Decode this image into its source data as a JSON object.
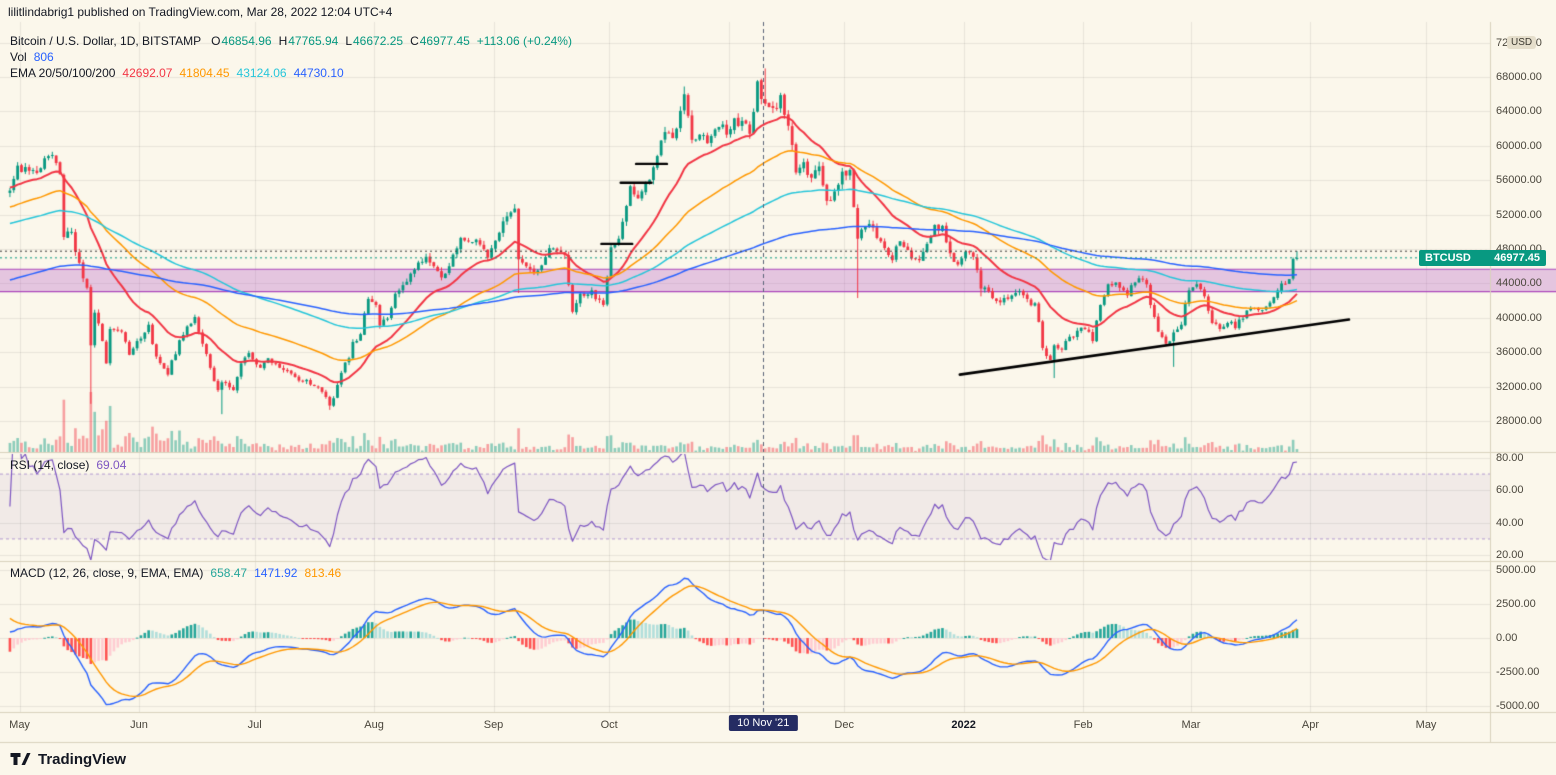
{
  "attribution": "lilitlindabrig1 published on TradingView.com, Mar 28, 2022 12:04 UTC+4",
  "header": {
    "title": "Bitcoin / U.S. Dollar, 1D, BITSTAMP",
    "ohlc": {
      "o_label": "O",
      "o": "46854.96",
      "h_label": "H",
      "h": "47765.94",
      "l_label": "L",
      "l": "46672.25",
      "c_label": "C",
      "c": "46977.45",
      "change": "+113.06 (+0.24%)"
    },
    "volume_label": "Vol",
    "volume_value": "806",
    "ema_label": "EMA 20/50/100/200"
  },
  "price_axis": {
    "unit": "USD",
    "ylim": [
      24400,
      74400
    ],
    "ticks": [
      72000,
      68000,
      64000,
      60000,
      56000,
      52000,
      48000,
      44000,
      40000,
      36000,
      32000,
      28000
    ]
  },
  "price_label_badge": {
    "symbol": "BTCUSD",
    "price": "46977.45"
  },
  "rsi": {
    "legend": "RSI (14, close)",
    "value": "69.04",
    "ticks": [
      80,
      60,
      40,
      20
    ],
    "upper_band": 70,
    "lower_band": 30,
    "ylim": [
      17,
      83
    ]
  },
  "macd": {
    "legend": "MACD (12, 26, close, 9, EMA, EMA)",
    "values": [
      {
        "v": "658.47",
        "color_key": "hist_up"
      },
      {
        "v": "1471.92",
        "color_key": "macd_line"
      },
      {
        "v": "813.46",
        "color_key": "signal_line"
      }
    ],
    "ticks": [
      5000,
      2500,
      0,
      -2500,
      -5000
    ],
    "ylim": [
      -5450,
      5600
    ]
  },
  "time_axis": {
    "months": [
      {
        "label": "May",
        "day": 3
      },
      {
        "label": "Jun",
        "day": 34
      },
      {
        "label": "Jul",
        "day": 64
      },
      {
        "label": "Aug",
        "day": 95
      },
      {
        "label": "Sep",
        "day": 126
      },
      {
        "label": "Oct",
        "day": 156
      },
      {
        "label": "Dec",
        "day": 217
      },
      {
        "label": "2022",
        "day": 248,
        "bold": true
      },
      {
        "label": "Feb",
        "day": 279
      },
      {
        "label": "Mar",
        "day": 307
      },
      {
        "label": "Apr",
        "day": 338
      },
      {
        "label": "May",
        "day": 368
      }
    ],
    "grid_days": [
      3,
      34,
      64,
      95,
      126,
      156,
      187,
      217,
      248,
      279,
      307,
      338,
      368
    ],
    "highlight": {
      "label": "10 Nov '21",
      "day": 196
    }
  },
  "footer": {
    "brand": "TradingView"
  },
  "colors": {
    "background": "#FBF7EB",
    "up": "#089981",
    "down": "#F23645",
    "vol_up": "rgba(8,153,129,0.45)",
    "vol_down": "rgba(242,54,69,0.45)",
    "vol_value": "#2962FF",
    "grid": "rgba(0,0,0,0.07)",
    "divider": "#D9D2BD",
    "axis_text": "#4A463C",
    "text": "#131722",
    "ema20": "#F23645",
    "ema50": "#FF9800",
    "ema100": "#26C6DA",
    "ema200": "#2962FF",
    "rsi": "#7E57C2",
    "rsi_band_fill": "rgba(126,87,194,0.08)",
    "rsi_band_line": "rgba(126,87,194,0.55)",
    "macd_line": "#2962FF",
    "signal_line": "#FF9800",
    "hist_up": "#26A69A",
    "hist_up_weak": "#B2DFDB",
    "hist_down": "#FF5252",
    "hist_down_weak": "#FFCDD2",
    "band_fill": "rgba(186,104,200,0.35)",
    "band_line": "#AB47BC",
    "price_line": "#089981",
    "drawing": "#000000",
    "vline": "#5A6478",
    "badge_bg": "#089981",
    "date_badge_bg": "#252C63"
  },
  "chart_data": {
    "type": "candlestick+indicators",
    "symbol": "BTCUSD",
    "exchange": "BITSTAMP",
    "interval": "1D",
    "days_total": 382,
    "candle_days": 335,
    "price_anchors": [
      [
        0,
        54800
      ],
      [
        2,
        57700
      ],
      [
        5,
        57100
      ],
      [
        8,
        57400
      ],
      [
        10,
        58800
      ],
      [
        12,
        58000
      ],
      [
        13,
        56700
      ],
      [
        14,
        49400
      ],
      [
        16,
        50000
      ],
      [
        18,
        46400
      ],
      [
        20,
        43500
      ],
      [
        21,
        36800
      ],
      [
        22,
        40600
      ],
      [
        24,
        37300
      ],
      [
        25,
        34700
      ],
      [
        26,
        38700
      ],
      [
        29,
        38400
      ],
      [
        31,
        35700
      ],
      [
        33,
        37300
      ],
      [
        36,
        39200
      ],
      [
        38,
        35500
      ],
      [
        41,
        33400
      ],
      [
        44,
        37400
      ],
      [
        46,
        39000
      ],
      [
        48,
        40100
      ],
      [
        51,
        35800
      ],
      [
        54,
        31600
      ],
      [
        55,
        32500
      ],
      [
        58,
        31600
      ],
      [
        60,
        34700
      ],
      [
        62,
        35900
      ],
      [
        65,
        34200
      ],
      [
        67,
        35300
      ],
      [
        70,
        34200
      ],
      [
        72,
        33800
      ],
      [
        75,
        32700
      ],
      [
        77,
        32800
      ],
      [
        80,
        31900
      ],
      [
        82,
        30800
      ],
      [
        83,
        29800
      ],
      [
        85,
        32200
      ],
      [
        86,
        33600
      ],
      [
        88,
        35300
      ],
      [
        89,
        37200
      ],
      [
        91,
        38100
      ],
      [
        93,
        42200
      ],
      [
        95,
        41500
      ],
      [
        96,
        39100
      ],
      [
        98,
        39900
      ],
      [
        100,
        42800
      ],
      [
        102,
        43800
      ],
      [
        105,
        45600
      ],
      [
        108,
        47100
      ],
      [
        110,
        46000
      ],
      [
        112,
        44700
      ],
      [
        114,
        46000
      ],
      [
        117,
        49300
      ],
      [
        119,
        48900
      ],
      [
        121,
        49100
      ],
      [
        123,
        48000
      ],
      [
        124,
        47000
      ],
      [
        127,
        49900
      ],
      [
        129,
        51800
      ],
      [
        131,
        52700
      ],
      [
        132,
        46800
      ],
      [
        134,
        46000
      ],
      [
        136,
        45200
      ],
      [
        138,
        46100
      ],
      [
        140,
        48100
      ],
      [
        142,
        47800
      ],
      [
        144,
        47300
      ],
      [
        146,
        40700
      ],
      [
        148,
        42800
      ],
      [
        151,
        43200
      ],
      [
        153,
        42100
      ],
      [
        154,
        41500
      ],
      [
        156,
        48200
      ],
      [
        158,
        49200
      ],
      [
        161,
        55300
      ],
      [
        163,
        53900
      ],
      [
        164,
        54700
      ],
      [
        167,
        57500
      ],
      [
        170,
        61600
      ],
      [
        172,
        60900
      ],
      [
        173,
        62000
      ],
      [
        175,
        66000
      ],
      [
        177,
        60700
      ],
      [
        179,
        61300
      ],
      [
        181,
        60300
      ],
      [
        183,
        61900
      ],
      [
        184,
        62200
      ],
      [
        186,
        61300
      ],
      [
        188,
        63200
      ],
      [
        190,
        62900
      ],
      [
        192,
        61400
      ],
      [
        194,
        67500
      ],
      [
        196,
        64900
      ],
      [
        198,
        64400
      ],
      [
        200,
        65900
      ],
      [
        201,
        63600
      ],
      [
        203,
        60100
      ],
      [
        204,
        56900
      ],
      [
        206,
        58100
      ],
      [
        208,
        56300
      ],
      [
        210,
        57600
      ],
      [
        212,
        53600
      ],
      [
        214,
        54700
      ],
      [
        216,
        57000
      ],
      [
        218,
        57200
      ],
      [
        220,
        49200
      ],
      [
        222,
        50600
      ],
      [
        224,
        50500
      ],
      [
        226,
        48900
      ],
      [
        228,
        47300
      ],
      [
        229,
        46700
      ],
      [
        231,
        48900
      ],
      [
        234,
        46900
      ],
      [
        236,
        46700
      ],
      [
        238,
        48600
      ],
      [
        240,
        50800
      ],
      [
        242,
        50700
      ],
      [
        244,
        47500
      ],
      [
        246,
        46200
      ],
      [
        248,
        47700
      ],
      [
        250,
        47100
      ],
      [
        252,
        43400
      ],
      [
        254,
        43100
      ],
      [
        257,
        41800
      ],
      [
        260,
        42600
      ],
      [
        262,
        43100
      ],
      [
        264,
        42200
      ],
      [
        266,
        41700
      ],
      [
        268,
        36500
      ],
      [
        270,
        35100
      ],
      [
        271,
        36800
      ],
      [
        273,
        36300
      ],
      [
        275,
        37800
      ],
      [
        277,
        38500
      ],
      [
        279,
        38700
      ],
      [
        281,
        37300
      ],
      [
        283,
        41500
      ],
      [
        285,
        43900
      ],
      [
        287,
        44100
      ],
      [
        288,
        43500
      ],
      [
        290,
        42600
      ],
      [
        292,
        44100
      ],
      [
        293,
        44600
      ],
      [
        295,
        43900
      ],
      [
        297,
        40100
      ],
      [
        298,
        38400
      ],
      [
        300,
        37000
      ],
      [
        302,
        38300
      ],
      [
        304,
        39200
      ],
      [
        306,
        43200
      ],
      [
        308,
        43900
      ],
      [
        310,
        42500
      ],
      [
        312,
        39400
      ],
      [
        314,
        38700
      ],
      [
        316,
        39400
      ],
      [
        318,
        38800
      ],
      [
        320,
        39900
      ],
      [
        322,
        41100
      ],
      [
        324,
        40900
      ],
      [
        326,
        41300
      ],
      [
        328,
        42400
      ],
      [
        330,
        44000
      ],
      [
        331,
        43900
      ],
      [
        332,
        44500
      ],
      [
        333,
        46850
      ],
      [
        334,
        46977.45
      ]
    ],
    "wicks": [
      [
        21,
        "low",
        30000
      ],
      [
        55,
        "low",
        28800
      ],
      [
        83,
        "low",
        29300
      ],
      [
        132,
        "low",
        42900
      ],
      [
        175,
        "high",
        66900
      ],
      [
        196,
        "high",
        69000
      ],
      [
        220,
        "low",
        42300
      ],
      [
        252,
        "low",
        42500
      ],
      [
        271,
        "low",
        33000
      ],
      [
        302,
        "low",
        34300
      ]
    ],
    "last_candle": {
      "open": 46854.96,
      "high": 47765.94,
      "low": 46672.25,
      "close": 46977.45
    },
    "emas": [
      {
        "period": 20,
        "color_key": "ema20",
        "seed": 55200,
        "last": "42692.07"
      },
      {
        "period": 50,
        "color_key": "ema50",
        "seed": 52800,
        "last": "41804.45"
      },
      {
        "period": 100,
        "color_key": "ema100",
        "seed": 50900,
        "last": "43124.06"
      },
      {
        "period": 200,
        "color_key": "ema200",
        "seed": 44300,
        "last": "44730.10"
      }
    ],
    "macd_def": {
      "fast": 12,
      "slow": 26,
      "signal": 9,
      "seed_fast": 55100,
      "seed_slow": 54600,
      "seed_signal": 1700
    },
    "rsi_last": 69.04,
    "macd_last": {
      "hist": 658.47,
      "macd": 1471.92,
      "signal": 813.46
    },
    "volume_last": 806,
    "levels": {
      "band": {
        "top": 45650,
        "bottom": 43050
      },
      "price_line": 46977.45,
      "dotted_line": 47750,
      "trendline": {
        "from": [
          247,
          33400
        ],
        "to": [
          348,
          39800
        ]
      },
      "step_marks": [
        [
          154,
          162,
          48600
        ],
        [
          159,
          167,
          55700
        ],
        [
          163,
          171,
          57900
        ]
      ]
    }
  }
}
